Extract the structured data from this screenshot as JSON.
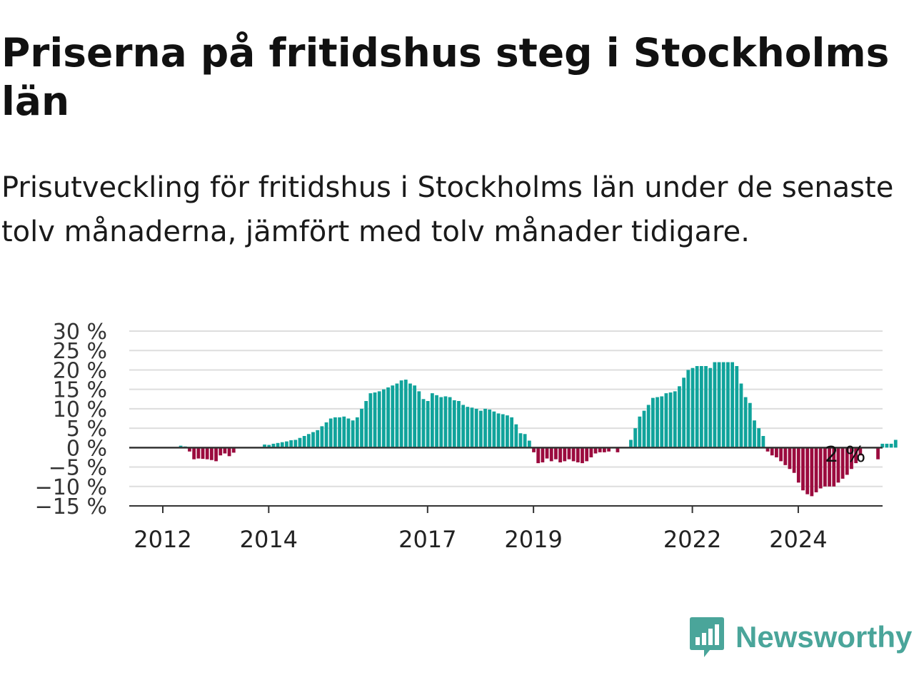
{
  "title": "Priserna på fritidshus steg i Stockholms län",
  "subtitle": "Prisutveckling för fritidshus i Stockholms län under de senaste tolv månaderna, jämfört med tolv månader tidigare.",
  "brand": {
    "name": "Newsworthy",
    "icon": "newsworthy-logo-icon"
  },
  "colors": {
    "positive": "#10a39b",
    "negative": "#9b0b3e",
    "zero_line": "#333333",
    "grid": "#dddddd",
    "brand": "#4aa59a"
  },
  "chart_data": {
    "type": "bar",
    "x_start": "2012-01",
    "x_step": "month",
    "yticks": [
      "30 %",
      "25 %",
      "20 %",
      "15 %",
      "10 %",
      "5 %",
      "0 %",
      "−5 %",
      "−10 %",
      "−15 %"
    ],
    "ylim": [
      -15,
      30
    ],
    "xticks": [
      {
        "x": "2012-01",
        "label": "2012"
      },
      {
        "x": "2014-01",
        "label": "2014"
      },
      {
        "x": "2017-01",
        "label": "2017"
      },
      {
        "x": "2019-01",
        "label": "2019"
      },
      {
        "x": "2022-01",
        "label": "2022"
      },
      {
        "x": "2024-01",
        "label": "2024"
      }
    ],
    "annotation": {
      "text": "2 %",
      "x": "2024-11"
    },
    "values": [
      null,
      null,
      null,
      null,
      0.5,
      0.3,
      -1.0,
      -3.0,
      -2.8,
      -2.9,
      -3.0,
      -3.2,
      -3.5,
      -2.0,
      -1.5,
      -2.2,
      -1.3,
      null,
      null,
      null,
      null,
      null,
      null,
      0.8,
      0.7,
      1.0,
      1.2,
      1.4,
      1.6,
      1.9,
      2.0,
      2.5,
      3.0,
      3.5,
      4.0,
      4.5,
      5.5,
      6.5,
      7.5,
      7.8,
      7.8,
      8.0,
      7.5,
      7.0,
      7.8,
      10.0,
      12.0,
      14.0,
      14.2,
      14.5,
      15.0,
      15.5,
      16.0,
      16.5,
      17.3,
      17.5,
      16.5,
      16.0,
      14.5,
      12.5,
      12.0,
      14.0,
      13.5,
      13.0,
      13.2,
      13.0,
      12.2,
      12.0,
      11.0,
      10.5,
      10.3,
      10.0,
      9.5,
      10.0,
      9.8,
      9.3,
      8.8,
      8.6,
      8.3,
      7.8,
      6.0,
      3.7,
      3.5,
      1.8,
      -1.2,
      -4.0,
      -3.8,
      -2.8,
      -3.5,
      -3.0,
      -3.8,
      -3.5,
      -3.0,
      -3.5,
      -3.8,
      -4.0,
      -3.5,
      -2.5,
      -1.5,
      -1.2,
      -1.2,
      -1.0,
      null,
      -1.2,
      null,
      null,
      2.0,
      5.0,
      8.0,
      9.5,
      11.0,
      12.8,
      13.0,
      13.2,
      14.0,
      14.2,
      14.5,
      15.8,
      18.0,
      20.0,
      20.5,
      21.0,
      21.0,
      21.0,
      20.5,
      22.0,
      22.0,
      22.0,
      22.0,
      22.0,
      21.0,
      16.5,
      13.0,
      11.5,
      7.0,
      5.0,
      3.0,
      -1.0,
      -2.0,
      -2.5,
      -3.5,
      -4.5,
      -5.5,
      -6.5,
      -9.0,
      -11.0,
      -12.0,
      -12.5,
      -11.5,
      -10.5,
      -10.0,
      -10.0,
      -10.0,
      -9.0,
      -8.0,
      -7.0,
      -5.5,
      -4.0,
      -2.0,
      null,
      null,
      null,
      -3.0,
      1.0,
      1.0,
      1.0,
      2.0
    ]
  }
}
